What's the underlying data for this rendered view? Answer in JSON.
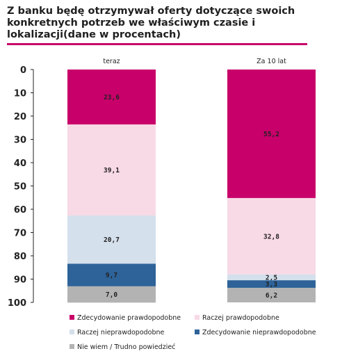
{
  "title": "Z banku będę otrzymywał oferty dotyczące swoich konkretnych potrzeb we właściwym czasie i lokalizacji(dane w procentach)",
  "chart_data": {
    "type": "bar",
    "stacked": true,
    "categories": [
      "teraz",
      "Za 10 lat"
    ],
    "ylim": [
      0,
      100
    ],
    "y_inverted": true,
    "yticks": [
      0,
      10,
      20,
      30,
      40,
      50,
      60,
      70,
      80,
      90,
      100
    ],
    "grid": false,
    "legend_position": "bottom",
    "series": [
      {
        "name": "Zdecydowanie prawdopodobne",
        "color": "#c8006a",
        "values": [
          23.6,
          55.2
        ],
        "labels": [
          "23,6",
          "55,2"
        ]
      },
      {
        "name": "Raczej prawdopodobne",
        "color": "#f8d9e6",
        "values": [
          39.1,
          32.8
        ],
        "labels": [
          "39,1",
          "32,8"
        ]
      },
      {
        "name": "Raczej nieprawdopodobne",
        "color": "#d4e0ec",
        "values": [
          20.7,
          2.5
        ],
        "labels": [
          "20,7",
          "2,5"
        ]
      },
      {
        "name": "Zdecydowanie nieprawdopodobne",
        "color": "#2e6399",
        "values": [
          9.7,
          3.3
        ],
        "labels": [
          "9,7",
          "3,3"
        ]
      },
      {
        "name": "Nie wiem / Trudno powiedzieć",
        "color": "#b3b3b3",
        "values": [
          7.0,
          6.2
        ],
        "labels": [
          "7,0",
          "6,2"
        ]
      }
    ]
  }
}
